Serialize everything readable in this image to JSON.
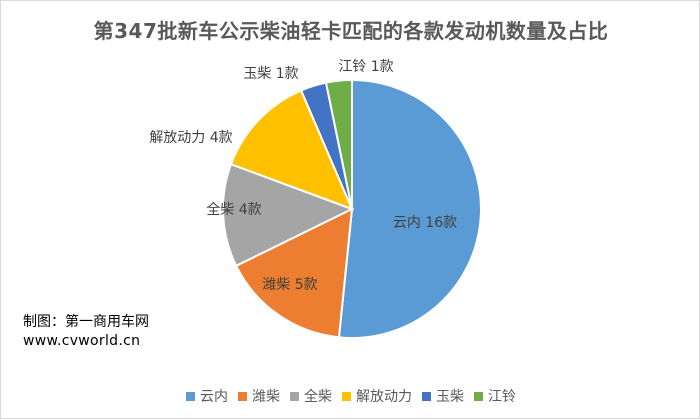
{
  "chart_data": {
    "type": "pie",
    "title": "第347批新车公示柴油轻卡匹配的各款发动机数量及占比",
    "categories": [
      "云内",
      "潍柴",
      "全柴",
      "解放动力",
      "玉柴",
      "江铃"
    ],
    "values": [
      16,
      5,
      4,
      4,
      1,
      1
    ],
    "unit": "款",
    "data_labels": [
      "云内 16款",
      "潍柴 5款",
      "全柴 4款",
      "解放动力 4款",
      "玉柴 1款",
      "江铃 1款"
    ],
    "colors": [
      "#5b9bd5",
      "#ed7d31",
      "#a5a5a5",
      "#ffc000",
      "#4472c4",
      "#70ad47"
    ],
    "legend_position": "bottom"
  },
  "credit": {
    "maker": "制图：第一商用车网",
    "url": "www.cvworld.cn"
  }
}
